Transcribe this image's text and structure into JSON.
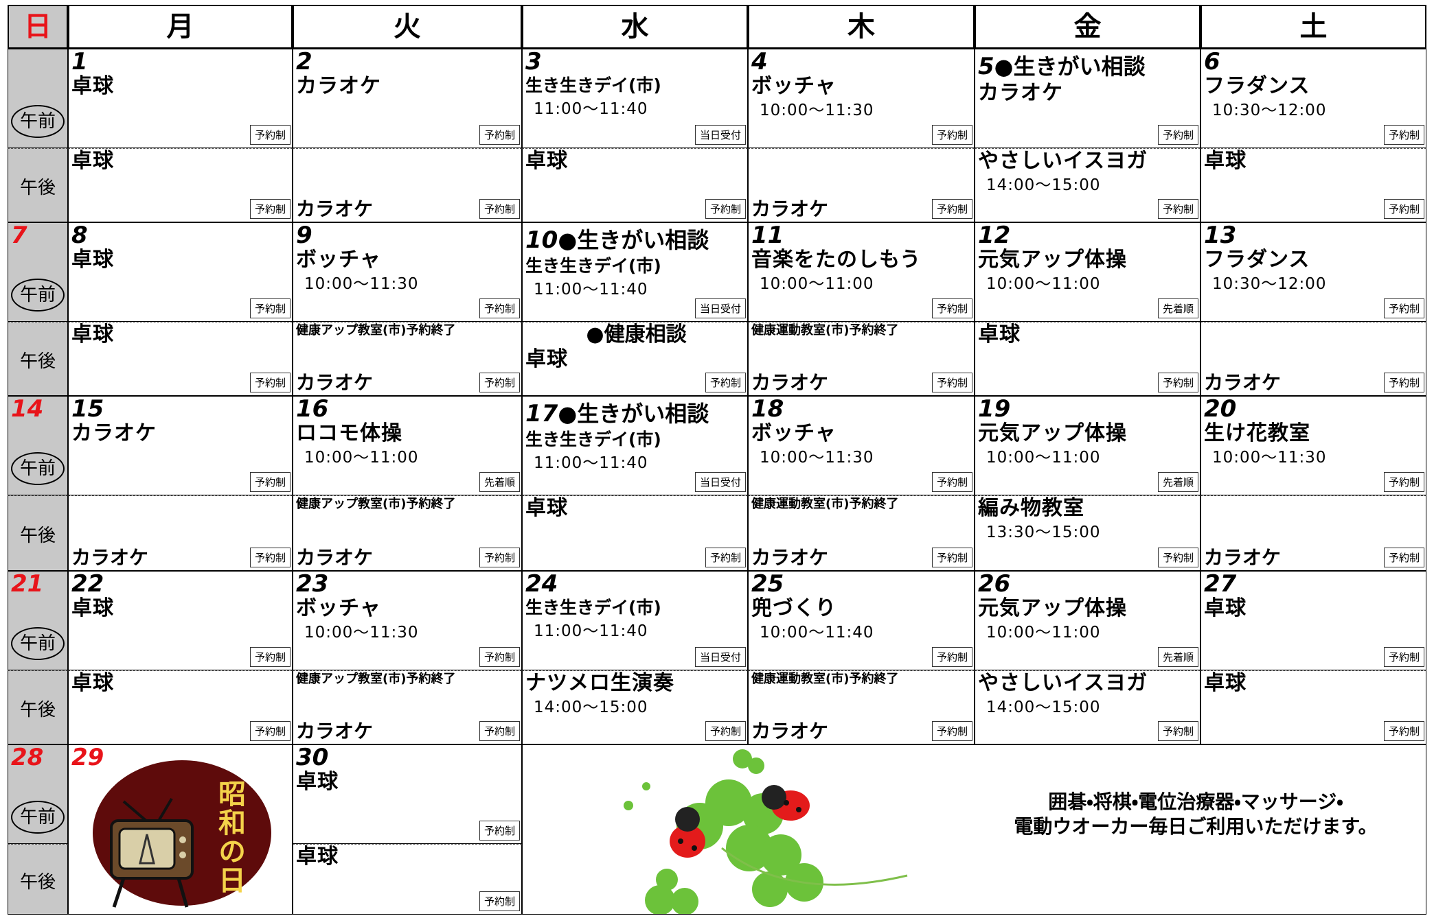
{
  "header": {
    "days": [
      "日",
      "月",
      "火",
      "水",
      "木",
      "金",
      "土"
    ]
  },
  "am_label": "午前",
  "pm_label": "午後",
  "weeks": [
    {
      "sunday": null,
      "days": [
        {
          "date": 1,
          "am": {
            "title": "卓球",
            "badge": "予約制"
          },
          "pm": {
            "title": "卓球",
            "badge": "予約制"
          }
        },
        {
          "date": 2,
          "am": {
            "title": "カラオケ",
            "badge": "予約制"
          },
          "pm": {
            "bottom": "カラオケ",
            "badge": "予約制"
          }
        },
        {
          "date": 3,
          "am": {
            "sub": "生き生きデイ(市)",
            "time": "11:00～11:40",
            "badge": "当日受付"
          },
          "pm": {
            "title": "卓球",
            "badge": "予約制"
          }
        },
        {
          "date": 4,
          "am": {
            "title": "ボッチャ",
            "time": "10:00～11:30",
            "badge": "予約制"
          },
          "pm": {
            "bottom": "カラオケ",
            "badge": "予約制"
          }
        },
        {
          "date": 5,
          "date_note": "●生きがい相談",
          "am": {
            "title": "カラオケ",
            "badge": "予約制"
          },
          "pm": {
            "title": "やさしいイスヨガ",
            "time": "14:00～15:00",
            "badge": "予約制"
          }
        },
        {
          "date": 6,
          "am": {
            "title": "フラダンス",
            "time": "10:30～12:00",
            "badge": "予約制"
          },
          "pm": {
            "title": "卓球",
            "badge": "予約制"
          }
        }
      ]
    },
    {
      "sunday": 7,
      "days": [
        {
          "date": 8,
          "am": {
            "title": "卓球",
            "badge": "予約制"
          },
          "pm": {
            "title": "卓球",
            "badge": "予約制"
          }
        },
        {
          "date": 9,
          "am": {
            "title": "ボッチャ",
            "time": "10:00～11:30",
            "badge": "予約制"
          },
          "pm": {
            "notice": "健康アップ教室(市)予約終了",
            "bottom": "カラオケ",
            "badge": "予約制"
          }
        },
        {
          "date": 10,
          "date_note": "●生きがい相談",
          "am": {
            "sub": "生き生きデイ(市)",
            "time": "11:00～11:40",
            "badge": "当日受付"
          },
          "pm": {
            "heading": "●健康相談",
            "title": "卓球",
            "badge": "予約制"
          }
        },
        {
          "date": 11,
          "am": {
            "title": "音楽をたのしもう",
            "time": "10:00～11:00",
            "badge": "予約制"
          },
          "pm": {
            "notice": "健康運動教室(市)予約終了",
            "bottom": "カラオケ",
            "badge": "予約制"
          }
        },
        {
          "date": 12,
          "am": {
            "title": "元気アップ体操",
            "time": "10:00～11:00",
            "badge": "先着順"
          },
          "pm": {
            "title": "卓球",
            "badge": "予約制"
          }
        },
        {
          "date": 13,
          "am": {
            "title": "フラダンス",
            "time": "10:30～12:00",
            "badge": "予約制"
          },
          "pm": {
            "bottom": "カラオケ",
            "badge": "予約制"
          }
        }
      ]
    },
    {
      "sunday": 14,
      "days": [
        {
          "date": 15,
          "am": {
            "title": "カラオケ",
            "badge": "予約制"
          },
          "pm": {
            "bottom": "カラオケ",
            "badge": "予約制"
          }
        },
        {
          "date": 16,
          "am": {
            "title": "ロコモ体操",
            "time": "10:00～11:00",
            "badge": "先着順"
          },
          "pm": {
            "notice": "健康アップ教室(市)予約終了",
            "bottom": "カラオケ",
            "badge": "予約制"
          }
        },
        {
          "date": 17,
          "date_note": "●生きがい相談",
          "am": {
            "sub": "生き生きデイ(市)",
            "time": "11:00～11:40",
            "badge": "当日受付"
          },
          "pm": {
            "title": "卓球",
            "badge": "予約制"
          }
        },
        {
          "date": 18,
          "am": {
            "title": "ボッチャ",
            "time": "10:00～11:30",
            "badge": "予約制"
          },
          "pm": {
            "notice": "健康運動教室(市)予約終了",
            "bottom": "カラオケ",
            "badge": "予約制"
          }
        },
        {
          "date": 19,
          "am": {
            "title": "元気アップ体操",
            "time": "10:00～11:00",
            "badge": "先着順"
          },
          "pm": {
            "title": "編み物教室",
            "time": "13:30～15:00",
            "badge": "予約制"
          }
        },
        {
          "date": 20,
          "am": {
            "title": "生け花教室",
            "time": "10:00～11:30",
            "badge": "予約制"
          },
          "pm": {
            "bottom": "カラオケ",
            "badge": "予約制"
          }
        }
      ]
    },
    {
      "sunday": 21,
      "days": [
        {
          "date": 22,
          "am": {
            "title": "卓球",
            "badge": "予約制"
          },
          "pm": {
            "title": "卓球",
            "badge": "予約制"
          }
        },
        {
          "date": 23,
          "am": {
            "title": "ボッチャ",
            "time": "10:00～11:30",
            "badge": "予約制"
          },
          "pm": {
            "notice": "健康アップ教室(市)予約終了",
            "bottom": "カラオケ",
            "badge": "予約制"
          }
        },
        {
          "date": 24,
          "am": {
            "sub": "生き生きデイ(市)",
            "time": "11:00～11:40",
            "badge": "当日受付"
          },
          "pm": {
            "title": "ナツメロ生演奏",
            "time": "14:00～15:00",
            "badge": "予約制"
          }
        },
        {
          "date": 25,
          "am": {
            "title": "兜づくり",
            "time": "10:00～11:40",
            "badge": "予約制"
          },
          "pm": {
            "notice": "健康運動教室(市)予約終了",
            "bottom": "カラオケ",
            "badge": "予約制"
          }
        },
        {
          "date": 26,
          "am": {
            "title": "元気アップ体操",
            "time": "10:00～11:00",
            "badge": "先着順"
          },
          "pm": {
            "title": "やさしいイスヨガ",
            "time": "14:00～15:00",
            "badge": "予約制"
          }
        },
        {
          "date": 27,
          "am": {
            "title": "卓球",
            "badge": "予約制"
          },
          "pm": {
            "title": "卓球",
            "badge": "予約制"
          }
        }
      ]
    },
    {
      "sunday": 28,
      "days": [
        {
          "date": 29,
          "color": "#e8141a",
          "holiday": "昭和の日"
        },
        {
          "date": 30,
          "am": {
            "title": "卓球",
            "badge": "予約制"
          },
          "pm": {
            "title": "卓球",
            "badge": "予約制"
          }
        }
      ],
      "footer": {
        "lines": [
          "囲碁・将棋・電位治療器・マッサージ・",
          "電動ウオーカー毎日ご利用いただけます。"
        ]
      }
    }
  ]
}
